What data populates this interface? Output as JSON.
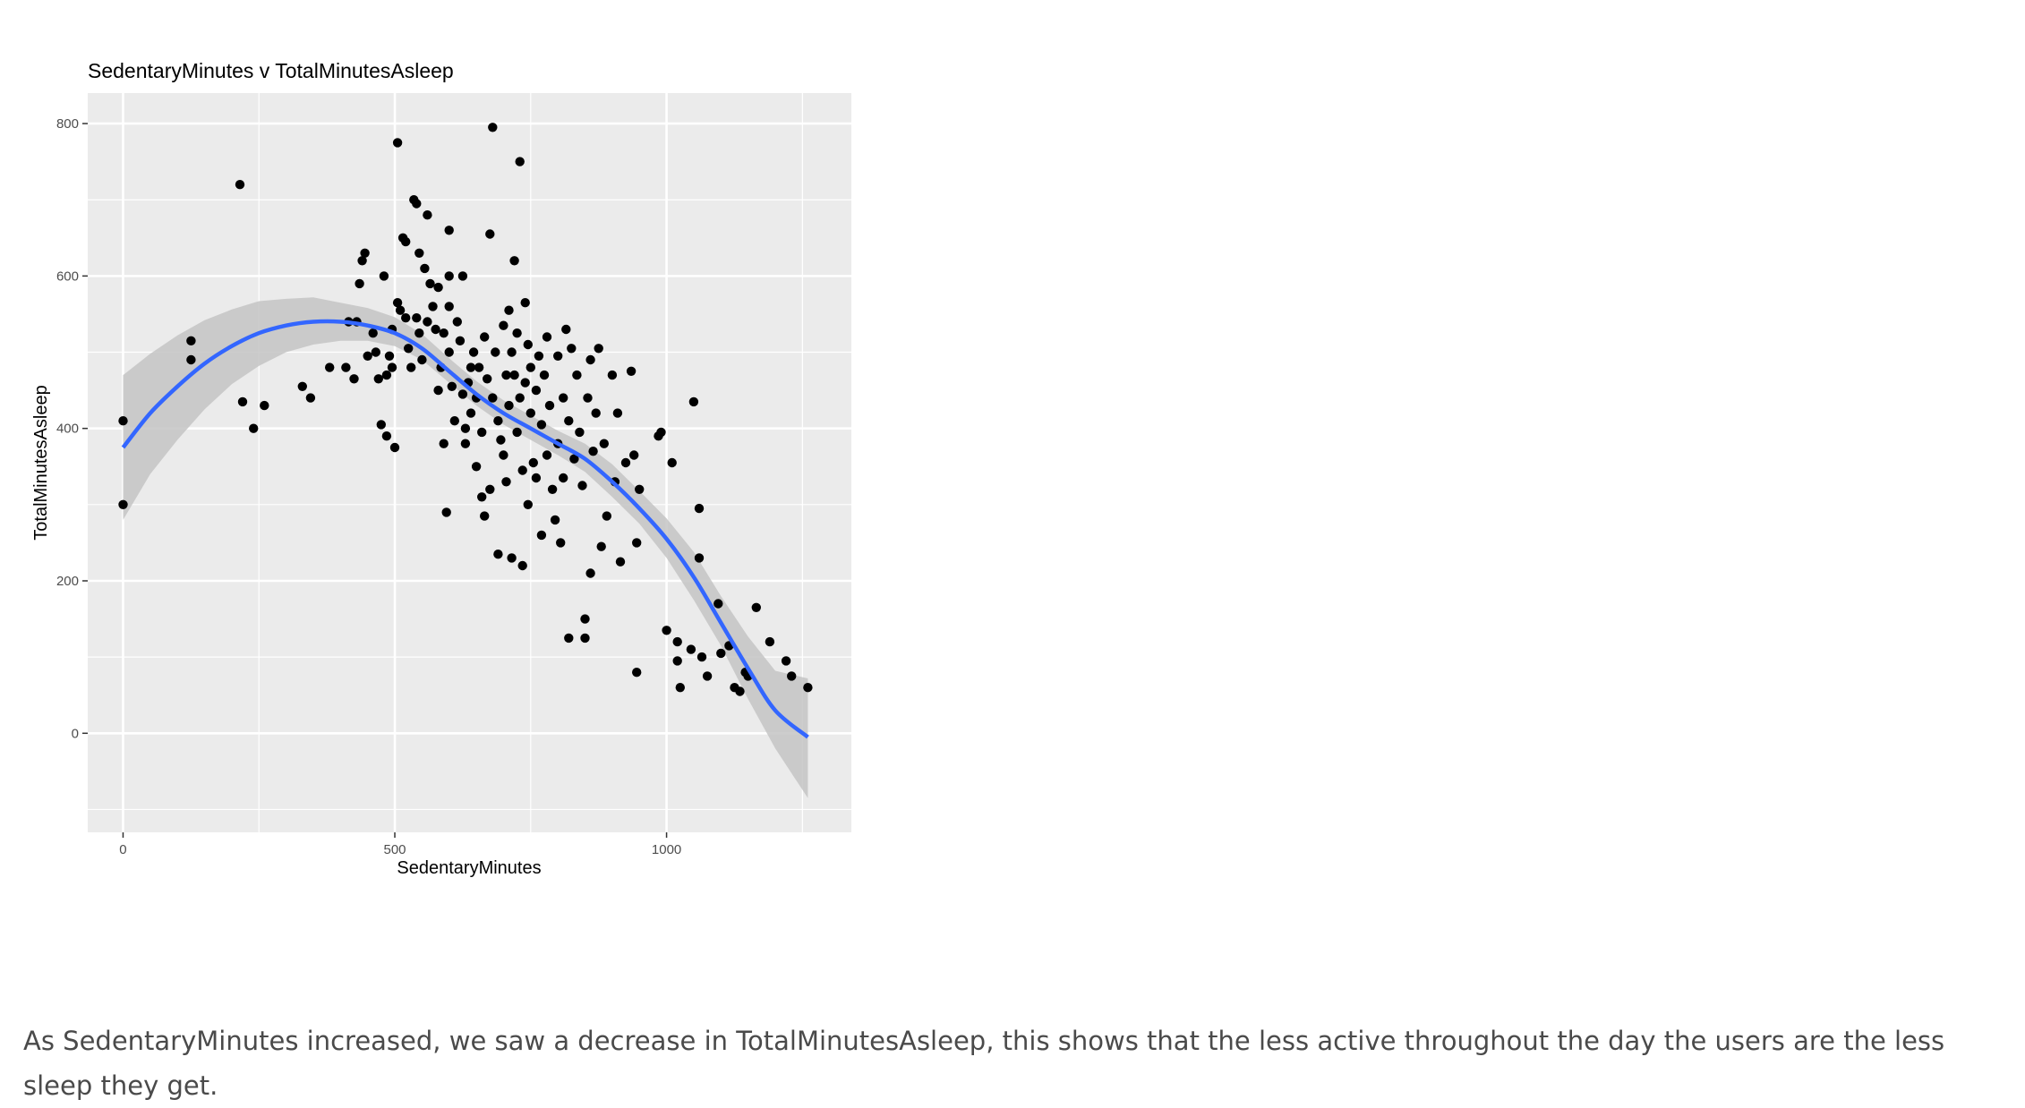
{
  "caption": "As SedentaryMinutes increased, we saw a decrease in TotalMinutesAsleep, this shows that the less active throughout the day the users are the less sleep they get.",
  "chart_data": {
    "type": "scatter",
    "title": "SedentaryMinutes v TotalMinutesAsleep",
    "xlabel": "SedentaryMinutes",
    "ylabel": "TotalMinutesAsleep",
    "xlim": [
      -65,
      1340
    ],
    "ylim": [
      -130,
      840
    ],
    "x_ticks": [
      0,
      500,
      1000
    ],
    "x_tick_labels": [
      "0",
      "500",
      "1000"
    ],
    "y_ticks": [
      0,
      200,
      400,
      600,
      800
    ],
    "y_tick_labels": [
      "0",
      "200",
      "400",
      "600",
      "800"
    ],
    "grid": true,
    "legend": "none",
    "colors": {
      "panel": "#ebebeb",
      "gridline": "#ffffff",
      "point": "#000000",
      "trend_line": "#3366ff",
      "confidence_band": "#c4c4c4"
    },
    "points": [
      [
        0,
        410
      ],
      [
        0,
        300
      ],
      [
        125,
        515
      ],
      [
        125,
        490
      ],
      [
        215,
        720
      ],
      [
        220,
        435
      ],
      [
        240,
        400
      ],
      [
        260,
        430
      ],
      [
        330,
        455
      ],
      [
        345,
        440
      ],
      [
        380,
        480
      ],
      [
        410,
        480
      ],
      [
        415,
        540
      ],
      [
        425,
        465
      ],
      [
        430,
        540
      ],
      [
        435,
        590
      ],
      [
        440,
        620
      ],
      [
        445,
        630
      ],
      [
        450,
        495
      ],
      [
        460,
        525
      ],
      [
        465,
        500
      ],
      [
        470,
        465
      ],
      [
        475,
        405
      ],
      [
        480,
        600
      ],
      [
        485,
        470
      ],
      [
        485,
        390
      ],
      [
        490,
        495
      ],
      [
        495,
        530
      ],
      [
        495,
        480
      ],
      [
        500,
        375
      ],
      [
        505,
        775
      ],
      [
        505,
        565
      ],
      [
        510,
        555
      ],
      [
        515,
        650
      ],
      [
        520,
        645
      ],
      [
        520,
        545
      ],
      [
        525,
        505
      ],
      [
        530,
        480
      ],
      [
        535,
        700
      ],
      [
        540,
        695
      ],
      [
        540,
        545
      ],
      [
        545,
        525
      ],
      [
        545,
        630
      ],
      [
        550,
        490
      ],
      [
        555,
        610
      ],
      [
        560,
        680
      ],
      [
        560,
        540
      ],
      [
        565,
        590
      ],
      [
        570,
        560
      ],
      [
        575,
        530
      ],
      [
        580,
        585
      ],
      [
        580,
        450
      ],
      [
        585,
        480
      ],
      [
        590,
        525
      ],
      [
        590,
        380
      ],
      [
        595,
        290
      ],
      [
        600,
        660
      ],
      [
        600,
        600
      ],
      [
        600,
        560
      ],
      [
        600,
        500
      ],
      [
        605,
        455
      ],
      [
        610,
        410
      ],
      [
        615,
        540
      ],
      [
        620,
        515
      ],
      [
        625,
        600
      ],
      [
        625,
        445
      ],
      [
        630,
        400
      ],
      [
        630,
        380
      ],
      [
        635,
        460
      ],
      [
        640,
        480
      ],
      [
        640,
        420
      ],
      [
        645,
        500
      ],
      [
        650,
        350
      ],
      [
        650,
        440
      ],
      [
        655,
        480
      ],
      [
        660,
        310
      ],
      [
        660,
        395
      ],
      [
        665,
        520
      ],
      [
        665,
        285
      ],
      [
        670,
        465
      ],
      [
        675,
        655
      ],
      [
        675,
        320
      ],
      [
        680,
        795
      ],
      [
        680,
        440
      ],
      [
        685,
        500
      ],
      [
        690,
        235
      ],
      [
        690,
        410
      ],
      [
        695,
        385
      ],
      [
        700,
        535
      ],
      [
        700,
        365
      ],
      [
        705,
        470
      ],
      [
        705,
        330
      ],
      [
        710,
        555
      ],
      [
        710,
        430
      ],
      [
        715,
        500
      ],
      [
        715,
        230
      ],
      [
        720,
        620
      ],
      [
        720,
        470
      ],
      [
        725,
        525
      ],
      [
        725,
        395
      ],
      [
        730,
        750
      ],
      [
        730,
        440
      ],
      [
        735,
        345
      ],
      [
        735,
        220
      ],
      [
        740,
        565
      ],
      [
        740,
        460
      ],
      [
        745,
        510
      ],
      [
        745,
        300
      ],
      [
        750,
        480
      ],
      [
        750,
        420
      ],
      [
        755,
        355
      ],
      [
        760,
        450
      ],
      [
        760,
        335
      ],
      [
        765,
        495
      ],
      [
        770,
        405
      ],
      [
        770,
        260
      ],
      [
        775,
        470
      ],
      [
        780,
        520
      ],
      [
        780,
        365
      ],
      [
        785,
        430
      ],
      [
        790,
        320
      ],
      [
        795,
        280
      ],
      [
        800,
        495
      ],
      [
        800,
        380
      ],
      [
        805,
        250
      ],
      [
        810,
        440
      ],
      [
        810,
        335
      ],
      [
        815,
        530
      ],
      [
        820,
        125
      ],
      [
        820,
        410
      ],
      [
        825,
        505
      ],
      [
        830,
        360
      ],
      [
        835,
        470
      ],
      [
        840,
        395
      ],
      [
        845,
        325
      ],
      [
        850,
        125
      ],
      [
        850,
        150
      ],
      [
        855,
        440
      ],
      [
        860,
        210
      ],
      [
        860,
        490
      ],
      [
        865,
        370
      ],
      [
        870,
        420
      ],
      [
        875,
        505
      ],
      [
        880,
        245
      ],
      [
        885,
        380
      ],
      [
        890,
        285
      ],
      [
        900,
        470
      ],
      [
        905,
        330
      ],
      [
        910,
        420
      ],
      [
        915,
        225
      ],
      [
        925,
        355
      ],
      [
        935,
        475
      ],
      [
        940,
        365
      ],
      [
        945,
        250
      ],
      [
        945,
        80
      ],
      [
        950,
        320
      ],
      [
        985,
        390
      ],
      [
        990,
        395
      ],
      [
        1000,
        135
      ],
      [
        1010,
        355
      ],
      [
        1020,
        120
      ],
      [
        1020,
        95
      ],
      [
        1025,
        60
      ],
      [
        1045,
        110
      ],
      [
        1050,
        435
      ],
      [
        1060,
        295
      ],
      [
        1060,
        230
      ],
      [
        1065,
        100
      ],
      [
        1075,
        75
      ],
      [
        1095,
        170
      ],
      [
        1100,
        105
      ],
      [
        1115,
        115
      ],
      [
        1125,
        60
      ],
      [
        1135,
        55
      ],
      [
        1145,
        80
      ],
      [
        1150,
        75
      ],
      [
        1165,
        165
      ],
      [
        1190,
        120
      ],
      [
        1220,
        95
      ],
      [
        1230,
        75
      ],
      [
        1260,
        60
      ]
    ],
    "trend": {
      "x": [
        0,
        50,
        100,
        150,
        200,
        250,
        300,
        350,
        400,
        450,
        500,
        550,
        600,
        650,
        700,
        750,
        800,
        850,
        900,
        950,
        1000,
        1050,
        1100,
        1150,
        1200,
        1260
      ],
      "y": [
        375,
        420,
        455,
        485,
        508,
        525,
        535,
        540,
        540,
        535,
        525,
        505,
        475,
        445,
        420,
        400,
        380,
        360,
        330,
        295,
        255,
        205,
        145,
        85,
        30,
        -5
      ],
      "lower": [
        280,
        340,
        385,
        425,
        458,
        482,
        500,
        510,
        515,
        515,
        508,
        490,
        460,
        430,
        405,
        385,
        365,
        343,
        310,
        275,
        230,
        175,
        115,
        45,
        -20,
        -85
      ],
      "upper": [
        470,
        498,
        522,
        542,
        556,
        567,
        570,
        572,
        565,
        558,
        546,
        524,
        492,
        462,
        437,
        417,
        397,
        380,
        353,
        318,
        282,
        238,
        180,
        127,
        82,
        72
      ]
    }
  }
}
